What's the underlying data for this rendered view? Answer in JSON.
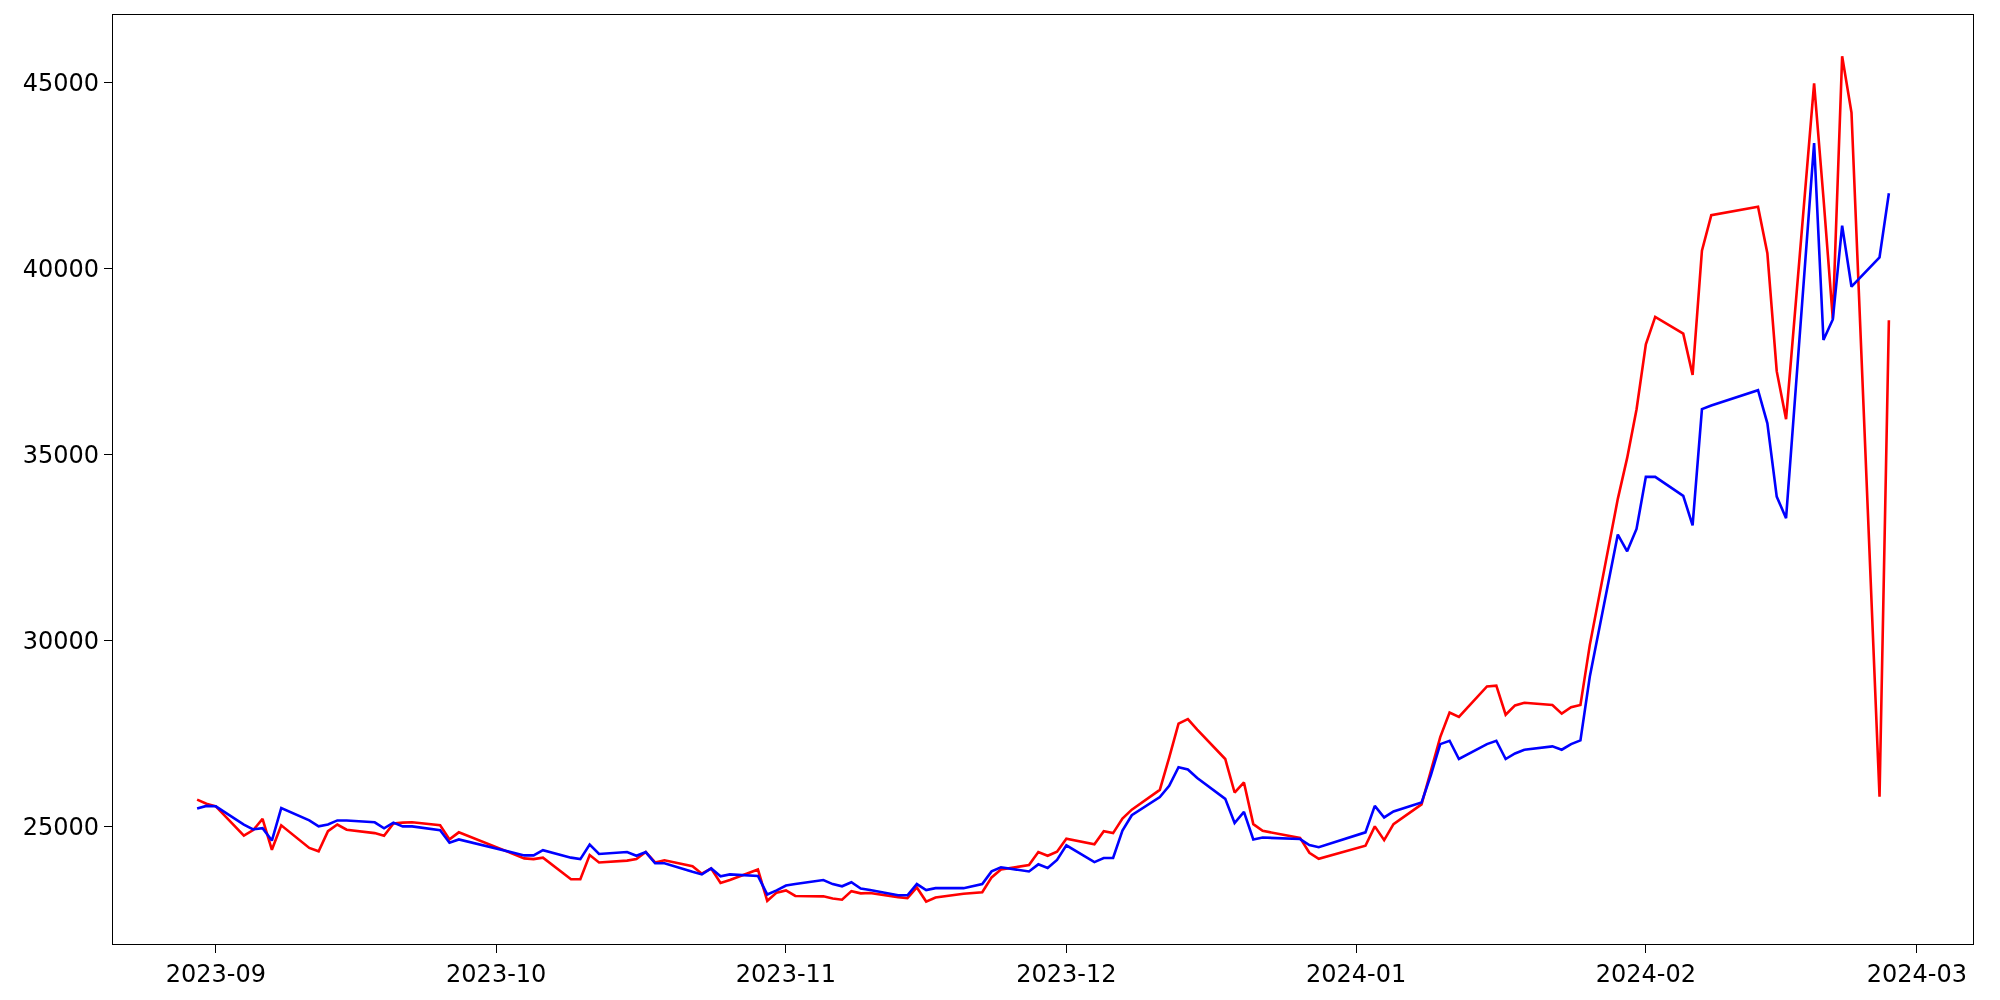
{
  "chart_data": {
    "type": "line",
    "x": [
      "2023-08-30",
      "2023-08-31",
      "2023-09-01",
      "2023-09-04",
      "2023-09-05",
      "2023-09-06",
      "2023-09-07",
      "2023-09-08",
      "2023-09-11",
      "2023-09-12",
      "2023-09-13",
      "2023-09-14",
      "2023-09-15",
      "2023-09-18",
      "2023-09-19",
      "2023-09-20",
      "2023-09-21",
      "2023-09-22",
      "2023-09-25",
      "2023-09-26",
      "2023-09-27",
      "2023-10-04",
      "2023-10-05",
      "2023-10-06",
      "2023-10-09",
      "2023-10-10",
      "2023-10-11",
      "2023-10-12",
      "2023-10-15",
      "2023-10-16",
      "2023-10-17",
      "2023-10-18",
      "2023-10-19",
      "2023-10-22",
      "2023-10-23",
      "2023-10-24",
      "2023-10-25",
      "2023-10-26",
      "2023-10-29",
      "2023-10-30",
      "2023-10-31",
      "2023-11-01",
      "2023-11-02",
      "2023-11-05",
      "2023-11-06",
      "2023-11-07",
      "2023-11-08",
      "2023-11-09",
      "2023-11-10",
      "2023-11-13",
      "2023-11-14",
      "2023-11-15",
      "2023-11-16",
      "2023-11-17",
      "2023-11-20",
      "2023-11-22",
      "2023-11-23",
      "2023-11-24",
      "2023-11-27",
      "2023-11-28",
      "2023-11-29",
      "2023-11-30",
      "2023-12-01",
      "2023-12-04",
      "2023-12-05",
      "2023-12-06",
      "2023-12-07",
      "2023-12-08",
      "2023-12-11",
      "2023-12-12",
      "2023-12-13",
      "2023-12-14",
      "2023-12-15",
      "2023-12-18",
      "2023-12-19",
      "2023-12-20",
      "2023-12-21",
      "2023-12-22",
      "2023-12-26",
      "2023-12-27",
      "2023-12-28",
      "2024-01-02",
      "2024-01-03",
      "2024-01-04",
      "2024-01-05",
      "2024-01-08",
      "2024-01-09",
      "2024-01-10",
      "2024-01-11",
      "2024-01-12",
      "2024-01-15",
      "2024-01-16",
      "2024-01-17",
      "2024-01-18",
      "2024-01-19",
      "2024-01-22",
      "2024-01-23",
      "2024-01-24",
      "2024-01-25",
      "2024-01-26",
      "2024-01-29",
      "2024-01-30",
      "2024-01-31",
      "2024-02-01",
      "2024-02-02",
      "2024-02-05",
      "2024-02-06",
      "2024-02-07",
      "2024-02-08",
      "2024-02-13",
      "2024-02-14",
      "2024-02-15",
      "2024-02-16",
      "2024-02-19",
      "2024-02-20",
      "2024-02-21",
      "2024-02-22",
      "2024-02-23",
      "2024-02-26",
      "2024-02-27"
    ],
    "series": [
      {
        "color": "#ff0000",
        "values": [
          25730,
          25620,
          25550,
          24760,
          24910,
          25210,
          24380,
          25040,
          24430,
          24340,
          24880,
          25060,
          24920,
          24830,
          24760,
          25090,
          25110,
          25120,
          25040,
          24660,
          24850,
          24150,
          24130,
          24170,
          23590,
          23590,
          24240,
          24040,
          24090,
          24130,
          24320,
          24040,
          24100,
          23940,
          23740,
          23880,
          23490,
          23570,
          23850,
          23010,
          23230,
          23290,
          23140,
          23130,
          23070,
          23040,
          23270,
          23210,
          23220,
          23110,
          23080,
          23370,
          22990,
          23100,
          23200,
          23240,
          23640,
          23850,
          23970,
          24320,
          24220,
          24330,
          24680,
          24530,
          24880,
          24830,
          25220,
          25460,
          25990,
          26860,
          27770,
          27890,
          27610,
          26820,
          25920,
          26190,
          25070,
          24890,
          24700,
          24300,
          24140,
          24490,
          25010,
          24640,
          25070,
          25600,
          26500,
          27410,
          28070,
          27950,
          28770,
          28790,
          28010,
          28260,
          28330,
          28270,
          28040,
          28210,
          28270,
          29880,
          33810,
          34910,
          36210,
          37960,
          38700,
          38250,
          37140,
          40480,
          41430,
          41660,
          40410,
          37240,
          35950,
          44970,
          41900,
          38650,
          45700,
          44190,
          25810,
          38610
        ]
      },
      {
        "color": "#0000ff",
        "values": [
          25490,
          25560,
          25550,
          25060,
          24930,
          24960,
          24630,
          25500,
          25170,
          25010,
          25060,
          25170,
          25170,
          25120,
          24960,
          25110,
          25010,
          25010,
          24910,
          24570,
          24660,
          24230,
          24230,
          24370,
          24170,
          24130,
          24520,
          24270,
          24320,
          24220,
          24320,
          24020,
          24020,
          23790,
          23720,
          23880,
          23670,
          23720,
          23680,
          23180,
          23290,
          23420,
          23460,
          23570,
          23460,
          23400,
          23510,
          23340,
          23300,
          23160,
          23160,
          23460,
          23300,
          23350,
          23350,
          23460,
          23800,
          23910,
          23800,
          23990,
          23890,
          24110,
          24500,
          24050,
          24160,
          24160,
          24900,
          25310,
          25800,
          26100,
          26600,
          26540,
          26310,
          25750,
          25100,
          25400,
          24660,
          24710,
          24670,
          24510,
          24450,
          24850,
          25560,
          25250,
          25410,
          25650,
          26390,
          27220,
          27310,
          26820,
          27220,
          27310,
          26820,
          26970,
          27070,
          27160,
          27070,
          27220,
          27320,
          29030,
          32850,
          32400,
          33000,
          34400,
          34400,
          33890,
          33100,
          36220,
          36320,
          36730,
          35840,
          33870,
          33290,
          43370,
          38080,
          38630,
          41150,
          39510,
          40300,
          42020
        ]
      }
    ],
    "xlim": [
      "2023-08-21",
      "2024-03-07"
    ],
    "xticks": [
      "2023-09",
      "2023-10",
      "2023-11",
      "2023-12",
      "2024-01",
      "2024-02",
      "2024-03"
    ],
    "ylim": [
      21850,
      46810
    ],
    "yticks": [
      25000,
      30000,
      35000,
      40000,
      45000
    ]
  }
}
